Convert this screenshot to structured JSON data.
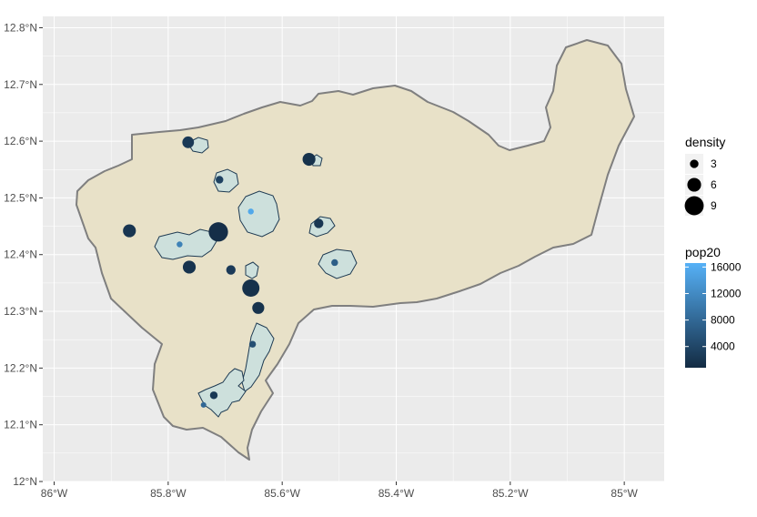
{
  "chart_data": {
    "type": "scatter",
    "map": true,
    "x_axis": {
      "ticks": [
        -86.0,
        -85.8,
        -85.6,
        -85.4,
        -85.2,
        -85.0
      ],
      "tick_labels": [
        "86°W",
        "85.8°W",
        "85.6°W",
        "85.4°W",
        "85.2°W",
        "85°W"
      ],
      "range": [
        -86.02,
        -84.93
      ]
    },
    "y_axis": {
      "ticks": [
        12.0,
        12.1,
        12.2,
        12.3,
        12.4,
        12.5,
        12.6,
        12.7,
        12.8
      ],
      "tick_labels": [
        "12°N",
        "12.1°N",
        "12.2°N",
        "12.3°N",
        "12.4°N",
        "12.5°N",
        "12.6°N",
        "12.7°N",
        "12.8°N"
      ],
      "range": [
        12.0,
        12.82
      ]
    },
    "grid": true,
    "colors": {
      "panel_background": "#ebebeb",
      "grid_line": "#ffffff",
      "region_fill": "#e8e1c8",
      "region_border": "#7f7f7f",
      "urban_fill": "#cde0dc",
      "urban_border": "#1e3a52",
      "gradient_low": "#132b43",
      "gradient_high": "#56b1f7"
    },
    "points": [
      {
        "lon": -85.765,
        "lat": 12.598,
        "density": 4.8,
        "pop20": 2500
      },
      {
        "lon": -85.71,
        "lat": 12.532,
        "density": 2.5,
        "pop20": 3500
      },
      {
        "lon": -85.553,
        "lat": 12.568,
        "density": 5.5,
        "pop20": 1600
      },
      {
        "lon": -85.655,
        "lat": 12.476,
        "density": 1.5,
        "pop20": 15500
      },
      {
        "lon": -85.536,
        "lat": 12.455,
        "density": 3.5,
        "pop20": 2200
      },
      {
        "lon": -85.868,
        "lat": 12.442,
        "density": 5.5,
        "pop20": 2000
      },
      {
        "lon": -85.712,
        "lat": 12.44,
        "density": 9.2,
        "pop20": 1200
      },
      {
        "lon": -85.78,
        "lat": 12.418,
        "density": 1.5,
        "pop20": 11000
      },
      {
        "lon": -85.508,
        "lat": 12.386,
        "density": 2.0,
        "pop20": 6800
      },
      {
        "lon": -85.763,
        "lat": 12.378,
        "density": 5.5,
        "pop20": 1800
      },
      {
        "lon": -85.69,
        "lat": 12.373,
        "density": 3.5,
        "pop20": 2600
      },
      {
        "lon": -85.655,
        "lat": 12.341,
        "density": 8.0,
        "pop20": 1500
      },
      {
        "lon": -85.642,
        "lat": 12.306,
        "density": 5.0,
        "pop20": 1700
      },
      {
        "lon": -85.652,
        "lat": 12.242,
        "density": 2.0,
        "pop20": 5000
      },
      {
        "lon": -85.72,
        "lat": 12.152,
        "density": 2.5,
        "pop20": 2300
      },
      {
        "lon": -85.738,
        "lat": 12.135,
        "density": 1.3,
        "pop20": 8000
      }
    ],
    "legend": {
      "placement": "right",
      "size": {
        "title": "density",
        "entries": [
          {
            "value": 3,
            "label": "3"
          },
          {
            "value": 6,
            "label": "6"
          },
          {
            "value": 9,
            "label": "9"
          }
        ]
      },
      "color": {
        "title": "pop20",
        "min": 800,
        "max": 16600,
        "breaks": [
          {
            "value": 4000,
            "label": "4000"
          },
          {
            "value": 8000,
            "label": "8000"
          },
          {
            "value": 12000,
            "label": "12000"
          },
          {
            "value": 16000,
            "label": "16000"
          }
        ]
      }
    }
  }
}
